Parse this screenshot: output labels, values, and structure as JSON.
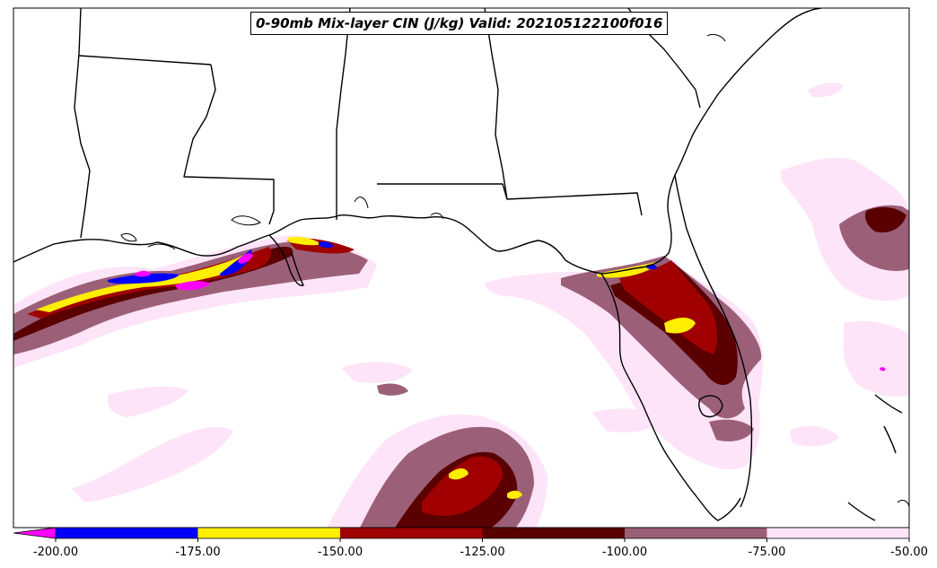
{
  "title": "0-90mb Mix-layer CIN (J/kg) Valid: 202105122100f016",
  "colorbar": {
    "extend": "min",
    "extend_color": "#ff00ff",
    "bins": [
      {
        "from": -200,
        "to": -175,
        "color": "#0000ff"
      },
      {
        "from": -175,
        "to": -150,
        "color": "#ffee00"
      },
      {
        "from": -150,
        "to": -125,
        "color": "#a00000"
      },
      {
        "from": -125,
        "to": -100,
        "color": "#5a0000"
      },
      {
        "from": -100,
        "to": -75,
        "color": "#9b6078"
      },
      {
        "from": -75,
        "to": -50,
        "color": "#fde4f8"
      }
    ],
    "tick_labels": [
      "-200.00",
      "-175.00",
      "-150.00",
      "-125.00",
      "-100.00",
      "-75.00",
      "-50.00"
    ]
  }
}
